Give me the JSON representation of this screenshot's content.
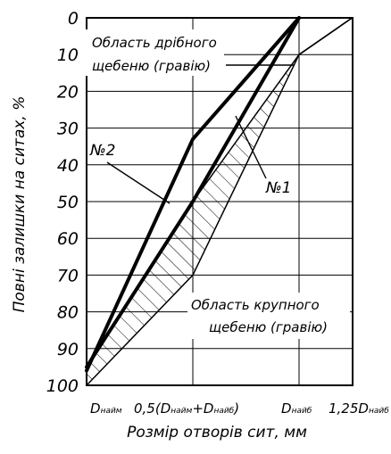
{
  "chart_data": {
    "type": "line",
    "xlabel": "Розмір отворів сит, мм",
    "ylabel": "Повні залишки на ситах, %",
    "y_inverted": true,
    "ylim": [
      0,
      100
    ],
    "y_ticks": [
      "0",
      "10",
      "20",
      "30",
      "40",
      "50",
      "60",
      "70",
      "80",
      "90",
      "100"
    ],
    "x_positions": [
      0,
      1,
      2,
      2.5
    ],
    "x_ticks": [
      {
        "main": "D",
        "sub": "найм"
      },
      {
        "main": "0,5(D",
        "sub": "найм",
        "tail": "+D",
        "sub2": "найб",
        "end": ")"
      },
      {
        "main": "D",
        "sub": "найб"
      },
      {
        "main": "1,25D",
        "sub": "найб"
      }
    ],
    "region": {
      "upper_boundary": [
        [
          0,
          95
        ],
        [
          1,
          50
        ],
        [
          2,
          10
        ],
        [
          2.5,
          0
        ]
      ],
      "lower_boundary": [
        [
          0,
          100
        ],
        [
          1,
          70
        ],
        [
          2,
          10
        ],
        [
          2.5,
          0
        ]
      ]
    },
    "series": [
      {
        "name": "№1",
        "points": [
          [
            0,
            95
          ],
          [
            1,
            50
          ],
          [
            2,
            0
          ]
        ]
      },
      {
        "name": "№2",
        "points": [
          [
            0,
            96
          ],
          [
            1,
            33
          ],
          [
            2,
            0
          ]
        ]
      }
    ],
    "annotations": {
      "fine_area": [
        "Область дрібного",
        "щебеню (гравію)"
      ],
      "coarse_area": [
        "Область крупного",
        "щебеню (гравію)"
      ]
    },
    "grid": true
  }
}
